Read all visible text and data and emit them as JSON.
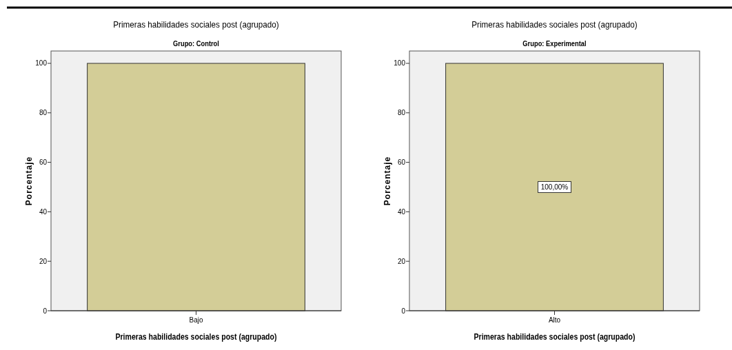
{
  "chart_data": [
    {
      "type": "bar",
      "title": "Primeras habilidades sociales post (agrupado)",
      "subtitle": "Grupo: Control",
      "xlabel": "Primeras habilidades sociales post (agrupado)",
      "ylabel": "Porcentaje",
      "categories": [
        "Bajo"
      ],
      "values": [
        100
      ],
      "color": "#d3cd97",
      "ylim": [
        0,
        105
      ],
      "yticks": [
        0,
        20,
        40,
        60,
        80,
        100
      ]
    },
    {
      "type": "bar",
      "title": "Primeras habilidades sociales post (agrupado)",
      "subtitle": "Grupo: Experimental",
      "xlabel": "Primeras habilidades sociales post (agrupado)",
      "ylabel": "Porcentaje",
      "categories": [
        "Alto"
      ],
      "values": [
        100
      ],
      "value_labels": [
        "100,00%"
      ],
      "color": "#d3cd97",
      "ylim": [
        0,
        105
      ],
      "yticks": [
        0,
        20,
        40,
        60,
        80,
        100
      ]
    }
  ]
}
